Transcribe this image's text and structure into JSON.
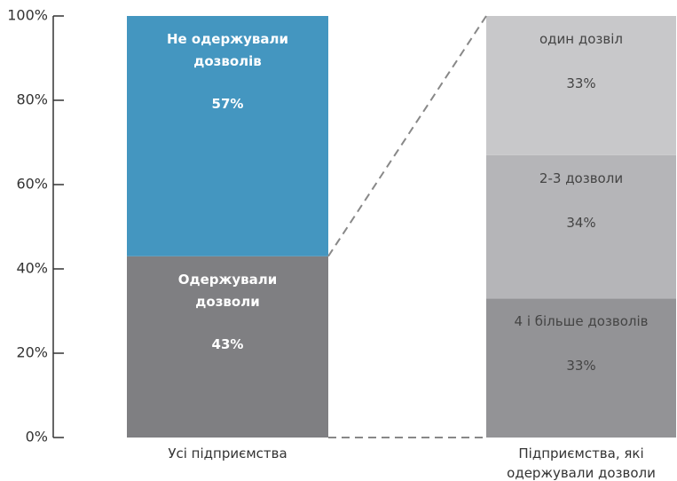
{
  "chart_data": {
    "type": "bar_of_bar",
    "categories": [
      "Усі підприємства",
      "Підприємства, які одержували дозволи"
    ],
    "bars": [
      {
        "segments": [
          {
            "name": "Одержували дозволи",
            "value": 43,
            "value_label": "43%",
            "color": "#7f7f82"
          },
          {
            "name": "Не одержували дозволів",
            "value": 57,
            "value_label": "57%",
            "color": "#4496c0"
          }
        ]
      },
      {
        "segments": [
          {
            "name": "4 і більше дозволів",
            "value": 33,
            "value_label": "33%",
            "color": "#939396"
          },
          {
            "name": "2-3 дозволи",
            "value": 34,
            "value_label": "34%",
            "color": "#b5b5b8"
          },
          {
            "name": "один дозвіл",
            "value": 33,
            "value_label": "33%",
            "color": "#c8c8ca"
          }
        ]
      }
    ],
    "ylim": [
      0,
      100
    ],
    "yticks": [
      {
        "value": 0,
        "label": "0%"
      },
      {
        "value": 20,
        "label": "20%"
      },
      {
        "value": 40,
        "label": "40%"
      },
      {
        "value": 60,
        "label": "60%"
      },
      {
        "value": 80,
        "label": "80%"
      },
      {
        "value": 100,
        "label": "100%"
      }
    ]
  }
}
